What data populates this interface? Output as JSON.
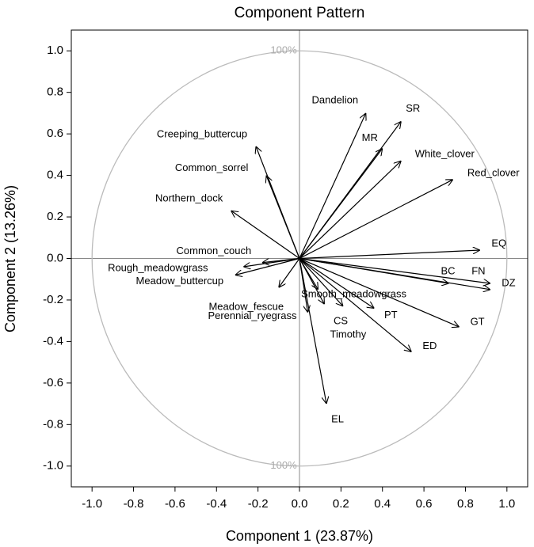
{
  "chart_data": {
    "type": "vector",
    "title": "Component Pattern",
    "x_label": "Component 1 (23.87%)",
    "y_label": "Component 2 (13.26%)",
    "reference_circle": {
      "radius": 1,
      "label": "100%"
    },
    "labels": [
      "Dandelion",
      "SR",
      "MR",
      "White_clover",
      "Red_clover",
      "EQ",
      "BC",
      "FN",
      "DZ",
      "GT",
      "ED",
      "PT",
      "CS",
      "Timothy",
      "Smooth_meadowgrass",
      "EL",
      "Meadow_fescue",
      "Perennial_ryegrass",
      "Common_couch",
      "Rough_meadowgrass",
      "Meadow_buttercup",
      "Northern_dock",
      "Common_sorrel",
      "Creeping_buttercup"
    ],
    "x": [
      0.32,
      0.49,
      0.4,
      0.49,
      0.74,
      0.87,
      0.72,
      0.92,
      0.92,
      0.77,
      0.54,
      0.36,
      0.21,
      0.12,
      0.09,
      0.13,
      -0.1,
      0.04,
      -0.18,
      -0.27,
      -0.31,
      -0.33,
      -0.16,
      -0.21
    ],
    "values": [
      0.7,
      0.66,
      0.53,
      0.47,
      0.38,
      0.04,
      -0.12,
      -0.12,
      -0.15,
      -0.33,
      -0.45,
      -0.24,
      -0.23,
      -0.22,
      -0.15,
      -0.7,
      -0.14,
      -0.26,
      -0.02,
      -0.04,
      -0.08,
      0.23,
      0.4,
      0.54
    ],
    "color": "#000000",
    "xlim": [
      -1.1,
      1.1
    ],
    "ylim": [
      -1.1,
      1.1
    ],
    "xticks": [
      {
        "value": -1,
        "label": "-1.0"
      },
      -0.8,
      -0.6,
      -0.4,
      -0.2,
      {
        "value": 0,
        "label": "0.0"
      },
      0.2,
      0.4,
      0.6,
      0.8,
      {
        "value": 1,
        "label": "1.0"
      }
    ],
    "yticks": [
      {
        "value": -1,
        "label": "-1.0"
      },
      -0.8,
      -0.6,
      -0.4,
      -0.2,
      {
        "value": 0,
        "label": "0.0"
      },
      0.2,
      0.4,
      0.6,
      0.8,
      {
        "value": 1,
        "label": "1.0"
      }
    ]
  }
}
